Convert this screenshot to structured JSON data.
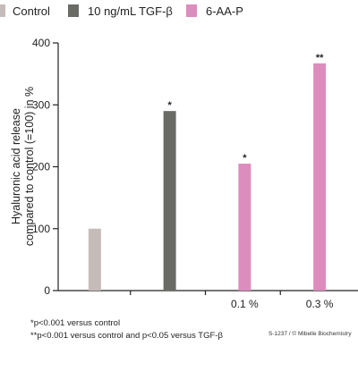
{
  "legend": [
    {
      "label": "Control",
      "color": "#c5bbb8"
    },
    {
      "label": "10 ng/mL TGF-β",
      "color": "#6b6b66"
    },
    {
      "label": "6-AA-P",
      "color": "#dc8cbd"
    }
  ],
  "ylabel_line1": "Hyaluronic acid release",
  "ylabel_line2": "compared to control (=100) in %",
  "footnotes": [
    "*p<0.001 versus control",
    "**p<0.001 versus control and p<0.05 versus TGF-β"
  ],
  "credit": "S-1237 / © Mibelle Biochemistry",
  "chart_data": {
    "type": "bar",
    "ylim": [
      0,
      400
    ],
    "yticks": [
      0,
      100,
      200,
      300,
      400
    ],
    "grid": false,
    "legend_position": "top",
    "categories": [
      "",
      "",
      "0.1 %",
      "0.3 %"
    ],
    "bars": [
      {
        "series": "Control",
        "value": 100,
        "significance": ""
      },
      {
        "series": "10 ng/mL TGF-β",
        "value": 290,
        "significance": "*"
      },
      {
        "series": "6-AA-P",
        "value": 205,
        "significance": "*"
      },
      {
        "series": "6-AA-P",
        "value": 367,
        "significance": "**"
      }
    ]
  }
}
